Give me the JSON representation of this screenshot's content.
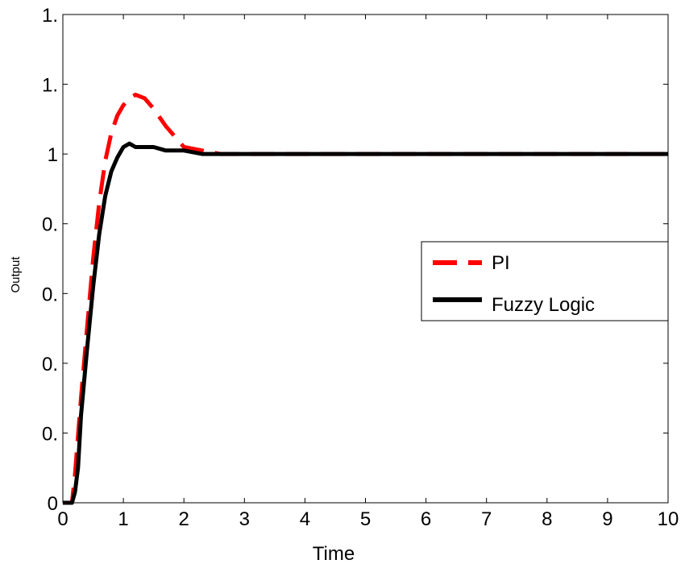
{
  "chart_data": {
    "type": "line",
    "title": "",
    "xlabel": "Time",
    "ylabel": "Output",
    "xlim": [
      0,
      10
    ],
    "ylim": [
      0,
      1.4
    ],
    "grid": false,
    "legend_position": "center-right",
    "x_tick_values": [
      0,
      1,
      2,
      3,
      4,
      5,
      6,
      7,
      8,
      9,
      10
    ],
    "x_tick_labels": [
      "0",
      "1",
      "2",
      "3",
      "4",
      "5",
      "6",
      "7",
      "8",
      "9",
      "10"
    ],
    "y_tick_values": [
      0,
      0.2,
      0.4,
      0.6,
      0.8,
      1.0,
      1.2,
      1.4
    ],
    "y_tick_labels": [
      "0",
      "0.",
      "0.",
      "0.",
      "0.",
      "1",
      "1.",
      "1."
    ],
    "series": [
      {
        "name": "PI",
        "color": "#ff0000",
        "style": "dashed",
        "x": [
          0,
          0.15,
          0.2,
          0.3,
          0.4,
          0.5,
          0.6,
          0.7,
          0.8,
          0.9,
          1.0,
          1.1,
          1.2,
          1.35,
          1.5,
          1.7,
          2.0,
          2.3,
          2.6,
          3.0,
          4.0,
          5.0,
          6.0,
          7.0,
          8.0,
          9.0,
          10.0
        ],
        "y": [
          0,
          0,
          0.08,
          0.3,
          0.5,
          0.7,
          0.86,
          0.98,
          1.06,
          1.11,
          1.14,
          1.16,
          1.17,
          1.16,
          1.13,
          1.08,
          1.02,
          1.01,
          1.0,
          1.0,
          1.0,
          1.0,
          1.0,
          1.0,
          1.0,
          1.0,
          1.0
        ]
      },
      {
        "name": "Fuzzy Logic",
        "color": "#000000",
        "style": "solid",
        "x": [
          0,
          0.15,
          0.2,
          0.25,
          0.3,
          0.4,
          0.5,
          0.6,
          0.7,
          0.8,
          0.9,
          1.0,
          1.1,
          1.2,
          1.35,
          1.5,
          1.7,
          1.8,
          2.0,
          2.3,
          2.6,
          3.0,
          4.0,
          5.0,
          6.0,
          7.0,
          8.0,
          9.0,
          10.0
        ],
        "y": [
          0,
          0,
          0.03,
          0.1,
          0.25,
          0.44,
          0.62,
          0.77,
          0.88,
          0.95,
          0.99,
          1.02,
          1.03,
          1.02,
          1.02,
          1.02,
          1.01,
          1.01,
          1.01,
          1.0,
          1.0,
          1.0,
          1.0,
          1.0,
          1.0,
          1.0,
          1.0,
          1.0,
          1.0
        ]
      }
    ]
  }
}
